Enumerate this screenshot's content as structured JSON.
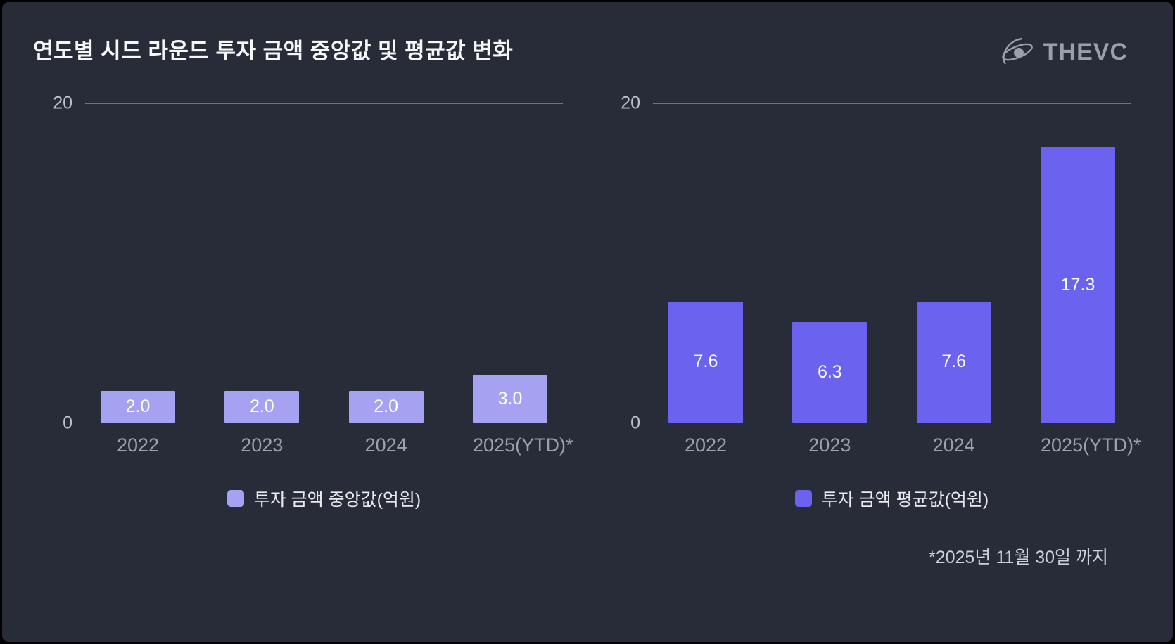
{
  "page": {
    "title": "연도별 시드 라운드 투자 금액 중앙값 및 평균값 변화",
    "logo_text": "THEVC",
    "footnote": "*2025년 11월 30일 까지"
  },
  "colors": {
    "background": "#272c38",
    "median_bar": "#a5a2f2",
    "average_bar": "#6b63f0"
  },
  "chart_data": [
    {
      "type": "bar",
      "title": "투자 금액 중앙값",
      "categories": [
        "2022",
        "2023",
        "2024",
        "2025(YTD)*"
      ],
      "values": [
        2.0,
        2.0,
        2.0,
        3.0
      ],
      "value_labels": [
        "2.0",
        "2.0",
        "2.0",
        "3.0"
      ],
      "legend": "투자 금액 중앙값(억원)",
      "bar_color": "#a5a2f2",
      "ylim": [
        0,
        20
      ],
      "yticks": [
        0,
        20
      ],
      "grid": "top-and-baseline-only",
      "legend_position": "bottom-center"
    },
    {
      "type": "bar",
      "title": "투자 금액 평균값",
      "categories": [
        "2022",
        "2023",
        "2024",
        "2025(YTD)*"
      ],
      "values": [
        7.6,
        6.3,
        7.6,
        17.3
      ],
      "value_labels": [
        "7.6",
        "6.3",
        "7.6",
        "17.3"
      ],
      "legend": "투자 금액 평균값(억원)",
      "bar_color": "#6b63f0",
      "ylim": [
        0,
        20
      ],
      "yticks": [
        0,
        20
      ],
      "grid": "top-and-baseline-only",
      "legend_position": "bottom-center"
    }
  ]
}
